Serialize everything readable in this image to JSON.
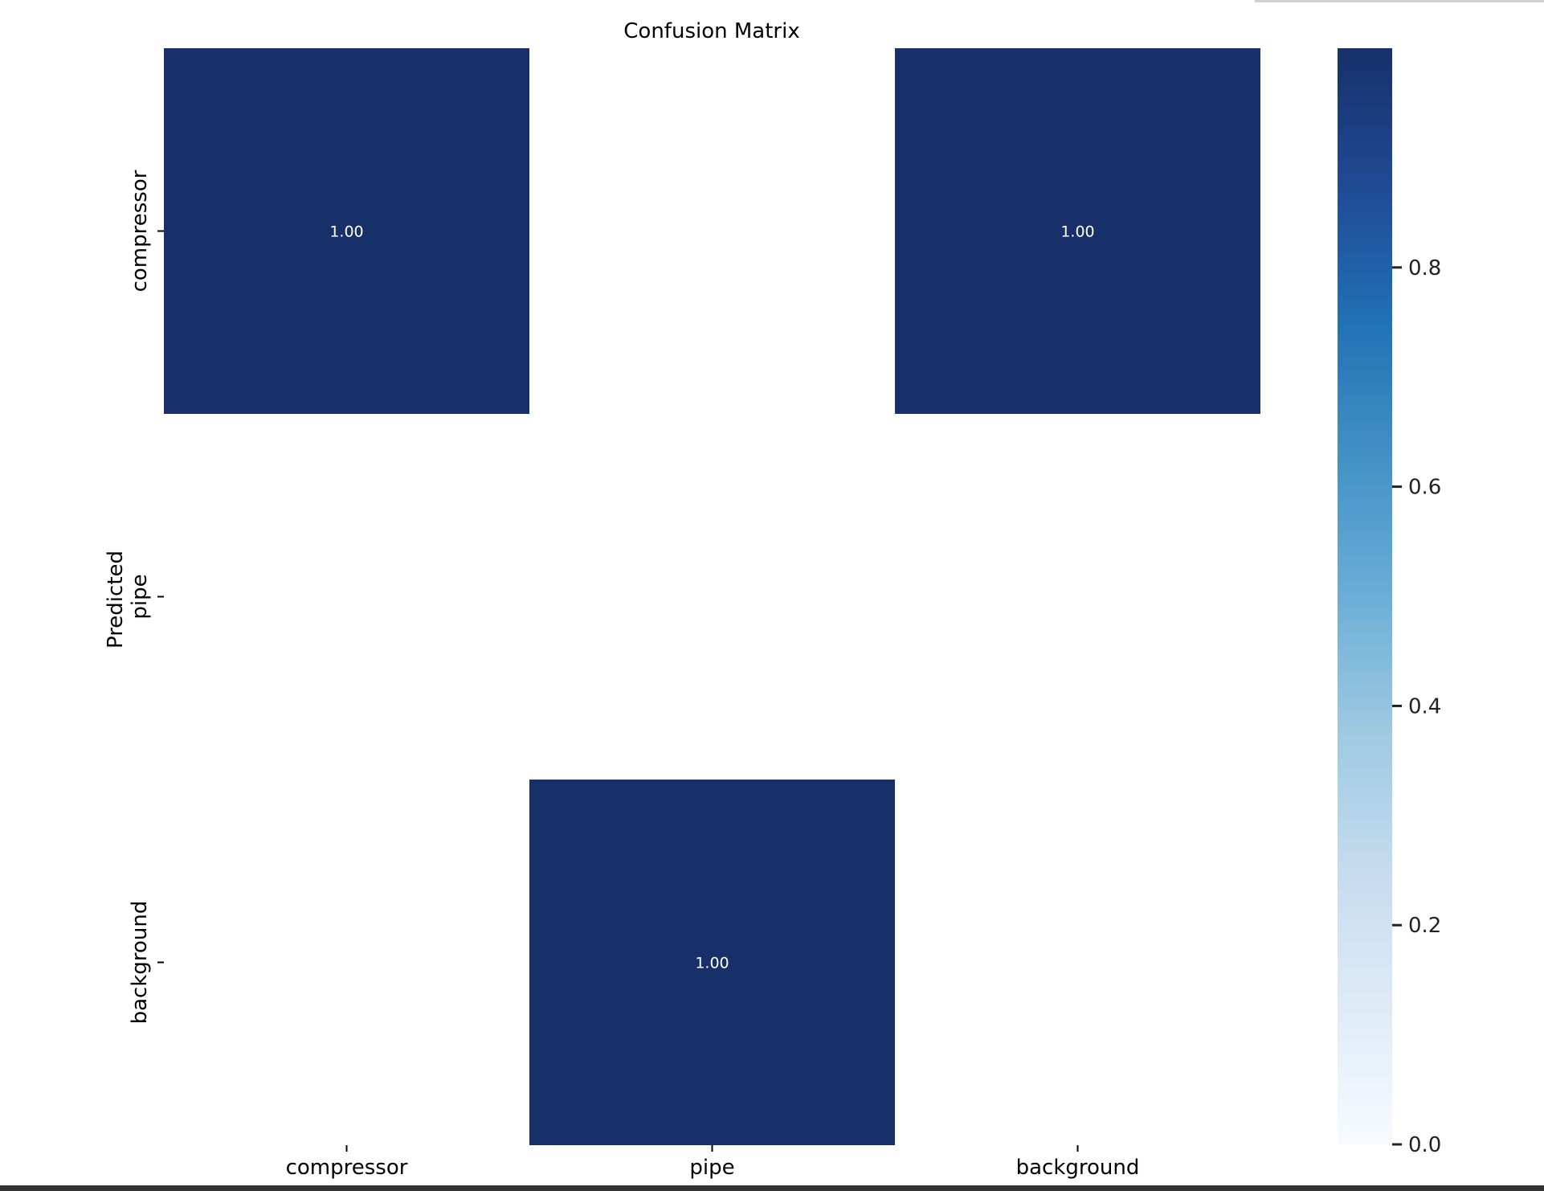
{
  "chart_data": {
    "type": "heatmap",
    "title": "Confusion Matrix",
    "ylabel": "Predicted",
    "xlabel": "",
    "x_categories": [
      "compressor",
      "pipe",
      "background"
    ],
    "y_categories": [
      "compressor",
      "pipe",
      "background"
    ],
    "matrix": [
      [
        1.0,
        null,
        1.0
      ],
      [
        null,
        null,
        null
      ],
      [
        null,
        1.0,
        null
      ]
    ],
    "annotations": [
      [
        "1.00",
        "",
        "1.00"
      ],
      [
        "",
        "",
        ""
      ],
      [
        "",
        "1.00",
        ""
      ]
    ],
    "colormap": "Blues",
    "vmin": 0.0,
    "vmax": 1.0,
    "colorbar_ticks": [
      0.0,
      0.2,
      0.4,
      0.6,
      0.8
    ],
    "colorbar_tick_labels": [
      "0.0",
      "0.2",
      "0.4",
      "0.6",
      "0.8"
    ],
    "colors": {
      "max": "#17306a",
      "min": "#f7fbff"
    }
  }
}
